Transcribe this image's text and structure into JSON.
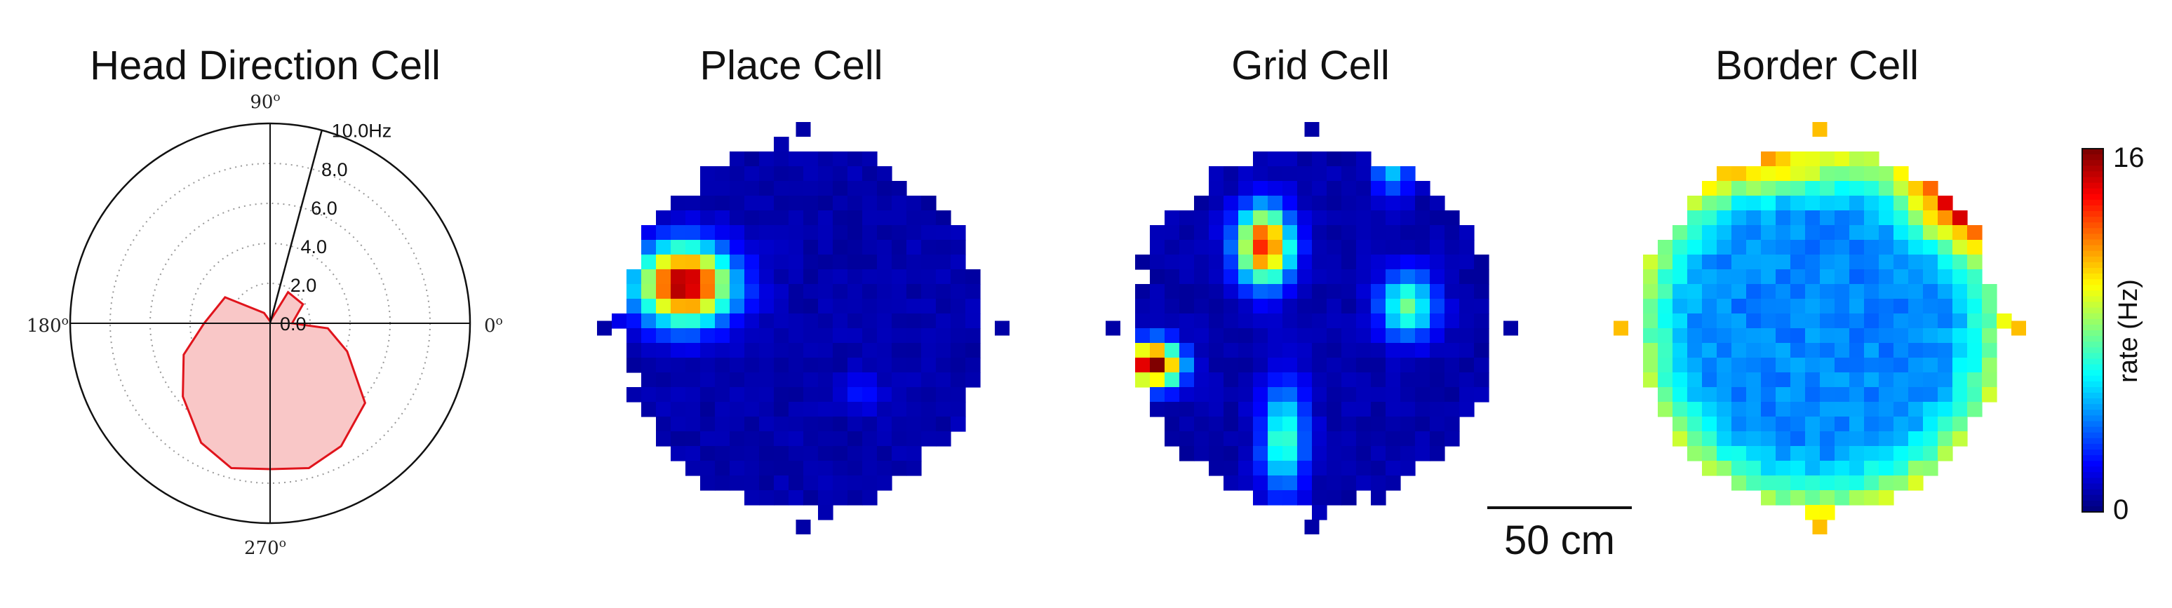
{
  "panels": {
    "hd_title": "Head Direction Cell",
    "place_title": "Place Cell",
    "grid_title": "Grid Cell",
    "border_title": "Border Cell"
  },
  "polar": {
    "angle_labels": {
      "a90": "90",
      "a180": "180",
      "a270": "270",
      "a0": "0"
    },
    "angle_suffix": "o",
    "radial_labels": [
      "0.0",
      "2.0",
      "4.0",
      "6.0",
      "8.0",
      "10.0Hz"
    ],
    "rmax": 10.0,
    "fill_color": "#f9c7c7",
    "line_color": "#e0141c"
  },
  "colorbar": {
    "min_label": "0",
    "max_label": "16",
    "label": "rate (Hz)",
    "colormap": "jet"
  },
  "scalebar": {
    "label": "50 cm"
  },
  "chart_data": [
    {
      "type": "polar",
      "title": "Head Direction Cell",
      "r_ticks": [
        0,
        2,
        4,
        6,
        8,
        10
      ],
      "r_unit": "Hz",
      "theta_ticks_deg": [
        0,
        90,
        180,
        270
      ],
      "theta_deg": [
        0,
        30,
        60,
        90,
        120,
        150,
        180,
        200,
        220,
        240,
        255,
        270,
        285,
        300,
        320,
        340,
        355
      ],
      "r_hz": [
        1.1,
        1.9,
        1.8,
        0.1,
        0.6,
        2.6,
        3.3,
        4.6,
        5.7,
        6.9,
        7.5,
        7.3,
        7.5,
        7.1,
        6.2,
        4.1,
        2.9
      ]
    },
    {
      "type": "heatmap",
      "title": "Place Cell",
      "vmin": 0,
      "vmax": 16,
      "unit": "Hz",
      "fields": [
        {
          "x": -0.62,
          "y": 0.23,
          "sx": 0.17,
          "sy": 0.14,
          "peak": 15
        },
        {
          "x": 0.3,
          "y": -0.33,
          "sx": 0.07,
          "sy": 0.06,
          "peak": 2
        }
      ]
    },
    {
      "type": "heatmap",
      "title": "Grid Cell",
      "vmin": 0,
      "vmax": 16,
      "unit": "Hz",
      "fields": [
        {
          "x": -0.25,
          "y": 0.43,
          "sx": 0.1,
          "sy": 0.14,
          "peak": 13
        },
        {
          "x": -0.83,
          "y": -0.19,
          "sx": 0.1,
          "sy": 0.08,
          "peak": 16
        },
        {
          "x": 0.5,
          "y": 0.12,
          "sx": 0.1,
          "sy": 0.12,
          "peak": 7
        },
        {
          "x": -0.15,
          "y": -0.58,
          "sx": 0.08,
          "sy": 0.2,
          "peak": 6.5
        },
        {
          "x": 0.42,
          "y": 0.85,
          "sx": 0.07,
          "sy": 0.1,
          "peak": 4.5
        }
      ]
    },
    {
      "type": "heatmap",
      "title": "Border Cell",
      "vmin": 0,
      "vmax": 16,
      "unit": "Hz",
      "pattern": "border",
      "fields": [
        {
          "x": 0.75,
          "y": 0.65,
          "sx": 0.2,
          "sy": 0.15,
          "peak": 6
        },
        {
          "x": -0.2,
          "y": 0.82,
          "sx": 0.3,
          "sy": 0.1,
          "peak": 3
        }
      ]
    }
  ]
}
